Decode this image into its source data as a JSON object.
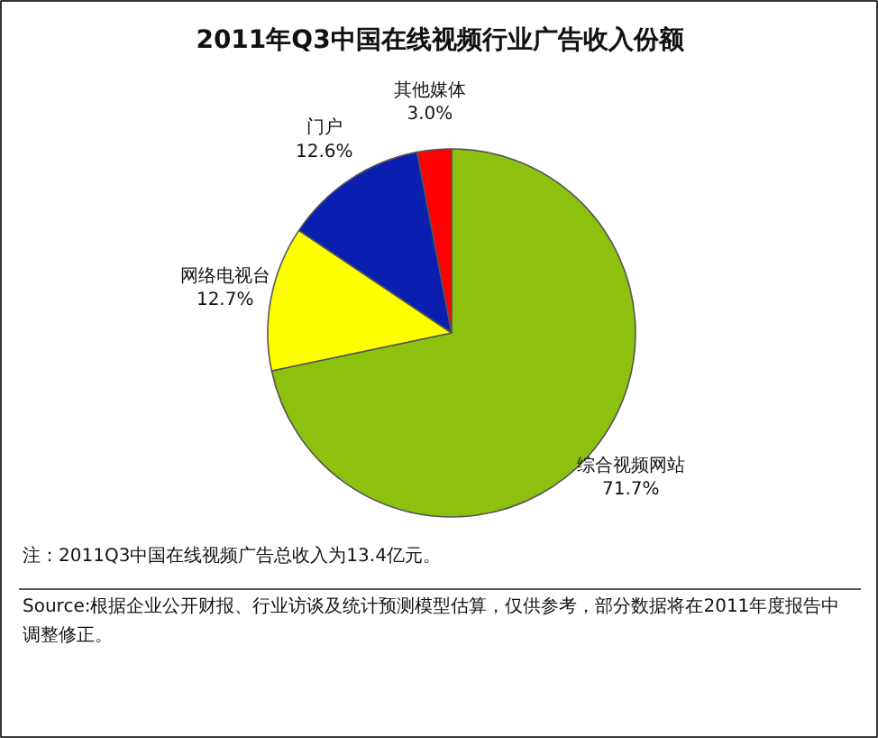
{
  "chart_data": {
    "type": "pie",
    "title": "2011年Q3中国在线视频行业广告收入份额",
    "categories": [
      "综合视频网站",
      "网络电视台",
      "门户",
      "其他媒体"
    ],
    "values": [
      71.7,
      12.7,
      12.6,
      3.0
    ],
    "colors": [
      "#8cc20f",
      "#ffff00",
      "#0a1fb0",
      "#ff0000"
    ],
    "value_labels": [
      "71.7%",
      "12.7%",
      "12.6%",
      "3.0%"
    ],
    "annotations": [
      "注：2011Q3中国在线视频广告总收入为13.4亿元。",
      "Source:根据企业公开财报、行业访谈及统计预测模型估算，仅供参考，部分数据将在2011年度报告中调整修正。"
    ]
  }
}
